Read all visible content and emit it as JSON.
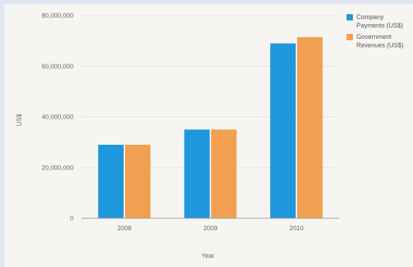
{
  "colors": {
    "company": "#1f97dc",
    "government": "#f0a050",
    "grid": "#e2e2e2",
    "axis": "#999999"
  },
  "chart_data": {
    "type": "bar",
    "categories": [
      "2008",
      "2009",
      "2010"
    ],
    "series": [
      {
        "name": "Company Payments (US$)",
        "values": [
          29000000,
          35000000,
          69000000
        ]
      },
      {
        "name": "Government Revenues (US$)",
        "values": [
          29000000,
          35000000,
          71500000
        ]
      }
    ],
    "xlabel": "Year",
    "ylabel": "US$",
    "ylim": [
      0,
      80000000
    ],
    "yticks": [
      "0",
      "20,000,000",
      "40,000,000",
      "60,000,000",
      "80,000,000"
    ],
    "grid": true,
    "legend_position": "top-right"
  }
}
